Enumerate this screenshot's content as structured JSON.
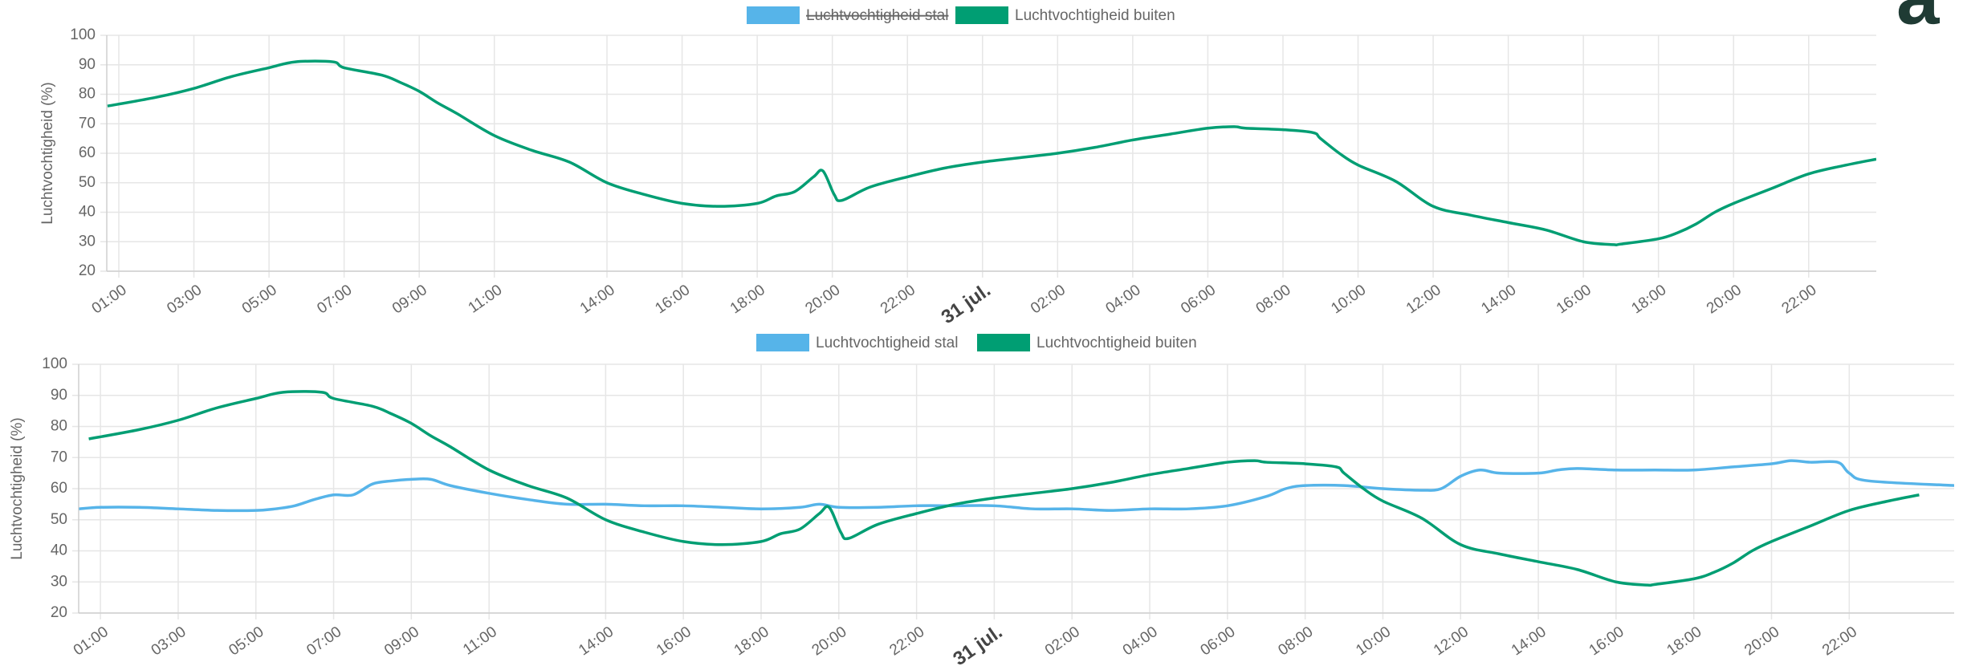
{
  "panel_label": "a",
  "chart_data": [
    {
      "type": "line",
      "ylabel": "Luchtvochtigheid (%)",
      "xlim": [
        0.68,
        47.8
      ],
      "ylim": [
        20,
        100
      ],
      "yticks": [
        20,
        30,
        40,
        50,
        60,
        70,
        80,
        90,
        100
      ],
      "grid": true,
      "xticks": [
        {
          "value": 1,
          "label": "01:00"
        },
        {
          "value": 3,
          "label": "03:00"
        },
        {
          "value": 5,
          "label": "05:00"
        },
        {
          "value": 7,
          "label": "07:00"
        },
        {
          "value": 9,
          "label": "09:00"
        },
        {
          "value": 11,
          "label": "11:00"
        },
        {
          "value": 14,
          "label": "14:00"
        },
        {
          "value": 16,
          "label": "16:00"
        },
        {
          "value": 18,
          "label": "18:00"
        },
        {
          "value": 20,
          "label": "20:00"
        },
        {
          "value": 22,
          "label": "22:00"
        },
        {
          "value": 24,
          "label": "31 jul.",
          "bold": true
        },
        {
          "value": 26,
          "label": "02:00"
        },
        {
          "value": 28,
          "label": "04:00"
        },
        {
          "value": 30,
          "label": "06:00"
        },
        {
          "value": 32,
          "label": "08:00"
        },
        {
          "value": 34,
          "label": "10:00"
        },
        {
          "value": 36,
          "label": "12:00"
        },
        {
          "value": 38,
          "label": "14:00"
        },
        {
          "value": 40,
          "label": "16:00"
        },
        {
          "value": 42,
          "label": "18:00"
        },
        {
          "value": 44,
          "label": "20:00"
        },
        {
          "value": 46,
          "label": "22:00"
        }
      ],
      "series": [
        {
          "name": "Luchtvochtigheid stal",
          "color": "#56b4e9",
          "hidden": true
        },
        {
          "name": "Luchtvochtigheid buiten",
          "color": "#009e73",
          "x": [
            0.7,
            2,
            3,
            4,
            5,
            5.7,
            6.7,
            7,
            8,
            8.5,
            9,
            9.5,
            10,
            11,
            12,
            13,
            14,
            15,
            16,
            17,
            18,
            18.5,
            19,
            19.5,
            19.75,
            20.05,
            20.25,
            21,
            22,
            23,
            24,
            25,
            26,
            27,
            28,
            29,
            30,
            30.7,
            31,
            32,
            32.8,
            33,
            33.5,
            34,
            35,
            36,
            37,
            38,
            39,
            40,
            40.8,
            41,
            42,
            42.5,
            43,
            43.5,
            44,
            45,
            46,
            47,
            47.8
          ],
          "values": [
            76,
            79,
            82,
            86,
            89,
            91,
            91,
            89,
            86.5,
            84,
            81,
            77,
            73.5,
            66,
            61,
            57,
            50,
            46,
            43,
            42,
            43,
            45.5,
            47,
            52,
            54,
            46,
            44,
            48.5,
            52,
            55,
            57,
            58.5,
            60,
            62,
            64.5,
            66.5,
            68.5,
            69,
            68.5,
            68,
            67,
            65,
            60,
            56,
            50.5,
            42,
            39,
            36.5,
            34,
            30,
            29,
            29.2,
            31,
            33,
            36,
            40,
            43,
            48,
            53,
            56,
            58
          ]
        }
      ]
    },
    {
      "type": "line",
      "ylabel": "Luchtvochtigheid (%)",
      "xlim": [
        0.44,
        48.7
      ],
      "ylim": [
        20,
        100
      ],
      "yticks": [
        20,
        30,
        40,
        50,
        60,
        70,
        80,
        90,
        100
      ],
      "grid": true,
      "xticks": [
        {
          "value": 1,
          "label": "01:00"
        },
        {
          "value": 3,
          "label": "03:00"
        },
        {
          "value": 5,
          "label": "05:00"
        },
        {
          "value": 7,
          "label": "07:00"
        },
        {
          "value": 9,
          "label": "09:00"
        },
        {
          "value": 11,
          "label": "11:00"
        },
        {
          "value": 14,
          "label": "14:00"
        },
        {
          "value": 16,
          "label": "16:00"
        },
        {
          "value": 18,
          "label": "18:00"
        },
        {
          "value": 20,
          "label": "20:00"
        },
        {
          "value": 22,
          "label": "22:00"
        },
        {
          "value": 24,
          "label": "31 jul.",
          "bold": true
        },
        {
          "value": 26,
          "label": "02:00"
        },
        {
          "value": 28,
          "label": "04:00"
        },
        {
          "value": 30,
          "label": "06:00"
        },
        {
          "value": 32,
          "label": "08:00"
        },
        {
          "value": 34,
          "label": "10:00"
        },
        {
          "value": 36,
          "label": "12:00"
        },
        {
          "value": 38,
          "label": "14:00"
        },
        {
          "value": 40,
          "label": "16:00"
        },
        {
          "value": 42,
          "label": "18:00"
        },
        {
          "value": 44,
          "label": "20:00"
        },
        {
          "value": 46,
          "label": "22:00"
        }
      ],
      "series": [
        {
          "name": "Luchtvochtigheid stal",
          "color": "#56b4e9",
          "x": [
            0.45,
            1,
            2,
            3,
            4,
            5,
            5.5,
            6,
            6.5,
            7,
            7.5,
            8,
            8.5,
            9,
            9.5,
            10,
            11,
            12,
            13,
            14,
            15,
            16,
            17,
            18,
            19,
            19.5,
            20,
            21,
            22,
            23,
            24,
            25,
            26,
            27,
            28,
            29,
            30,
            31,
            31.5,
            32,
            33,
            34,
            35,
            35.5,
            36,
            36.5,
            37,
            38,
            38.5,
            39,
            40,
            41,
            42,
            43,
            44,
            44.5,
            45,
            45.7,
            46,
            46.5,
            48.7
          ],
          "values": [
            53.5,
            54,
            54,
            53.5,
            53,
            53,
            53.5,
            54.5,
            56.5,
            58,
            58,
            61.5,
            62.5,
            63,
            63,
            61,
            58.5,
            56.5,
            55,
            55,
            54.5,
            54.5,
            54,
            53.5,
            54,
            55,
            54,
            54,
            54.5,
            54.5,
            54.5,
            53.5,
            53.5,
            53,
            53.5,
            53.5,
            54.5,
            57.5,
            60,
            61,
            61,
            60,
            59.5,
            60,
            64,
            66,
            65,
            65,
            66,
            66.5,
            66,
            66,
            66,
            67,
            68,
            69,
            68.5,
            68.5,
            65,
            62.5,
            61
          ]
        },
        {
          "name": "Luchtvochtigheid buiten",
          "color": "#009e73",
          "x": [
            0.7,
            2,
            3,
            4,
            5,
            5.7,
            6.7,
            7,
            8,
            8.5,
            9,
            9.5,
            10,
            11,
            12,
            13,
            14,
            15,
            16,
            17,
            18,
            18.5,
            19,
            19.5,
            19.75,
            20.05,
            20.25,
            21,
            22,
            23,
            24,
            25,
            26,
            27,
            28,
            29,
            30,
            30.7,
            31,
            32,
            32.8,
            33,
            33.5,
            34,
            35,
            36,
            37,
            38,
            39,
            40,
            40.8,
            41,
            42,
            42.5,
            43,
            43.5,
            44,
            45,
            46,
            47,
            47.8
          ],
          "values": [
            76,
            79,
            82,
            86,
            89,
            91,
            91,
            89,
            86.5,
            84,
            81,
            77,
            73.5,
            66,
            61,
            57,
            50,
            46,
            43,
            42,
            43,
            45.5,
            47,
            52,
            54,
            46,
            44,
            48.5,
            52,
            55,
            57,
            58.5,
            60,
            62,
            64.5,
            66.5,
            68.5,
            69,
            68.5,
            68,
            67,
            65,
            60,
            56,
            50.5,
            42,
            39,
            36.5,
            34,
            30,
            29,
            29.2,
            31,
            33,
            36,
            40,
            43,
            48,
            53,
            56,
            58
          ]
        }
      ]
    }
  ]
}
